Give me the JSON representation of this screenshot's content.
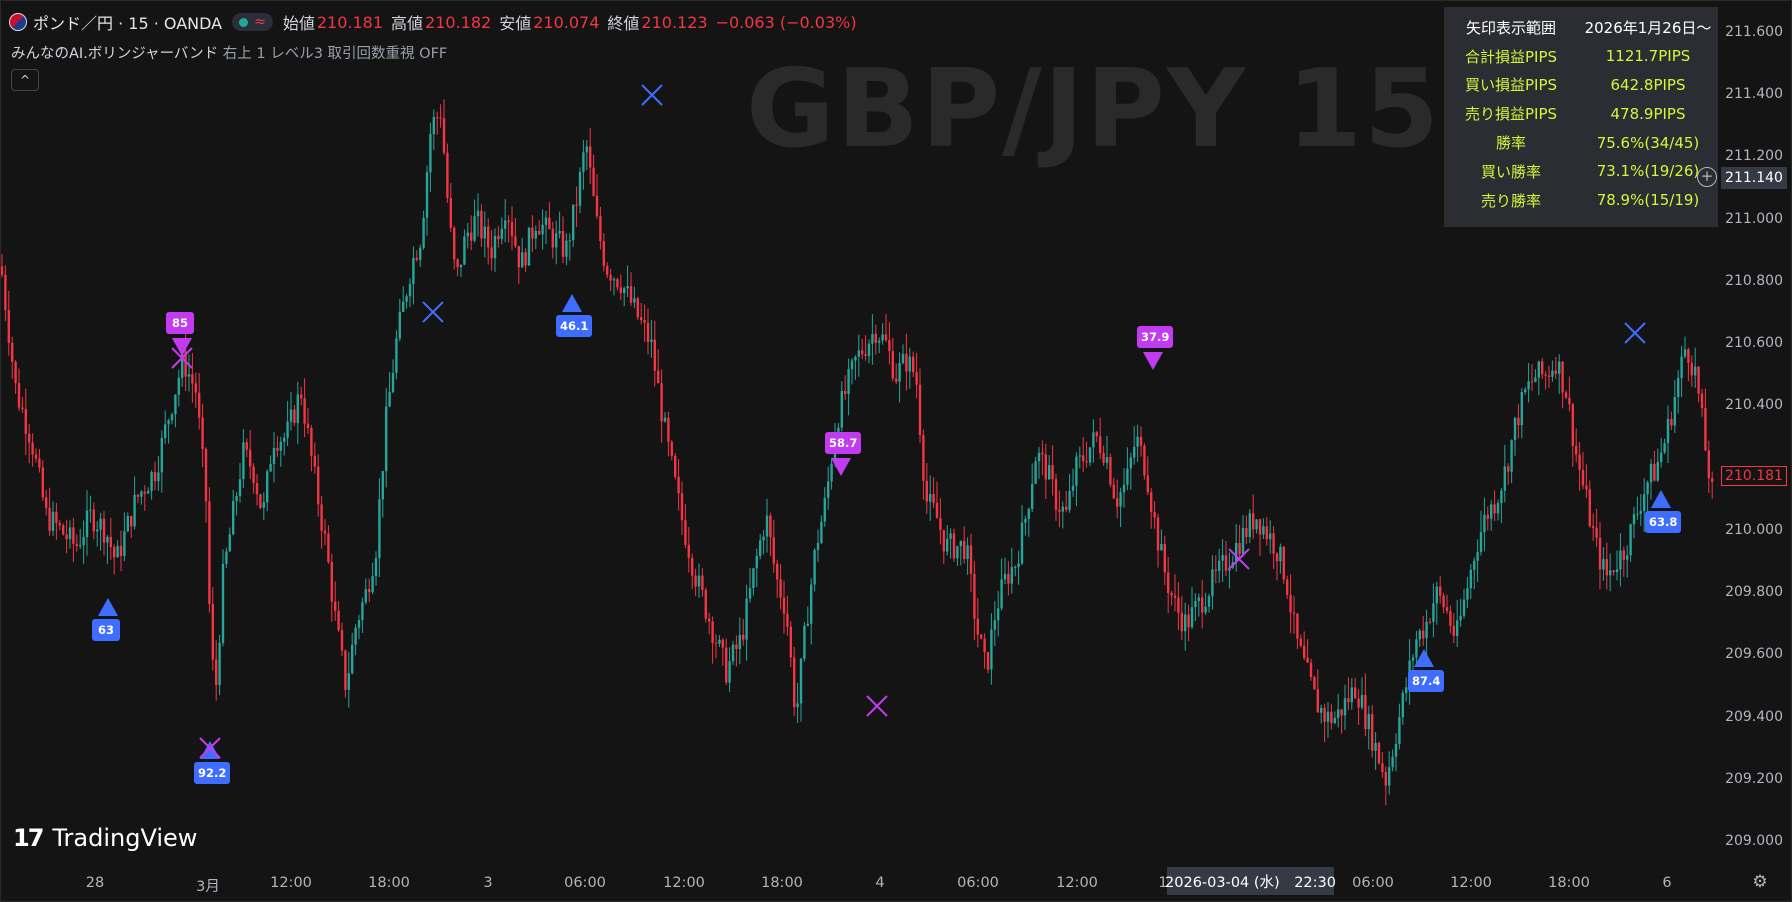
{
  "legend": {
    "symbol": "ポンド／円 · 15 · OANDA",
    "open_label": "始値",
    "open": "210.181",
    "high_label": "高値",
    "high": "210.182",
    "low_label": "安値",
    "low": "210.074",
    "close_label": "終値",
    "close": "210.123",
    "change": "−0.063 (−0.03%)",
    "wave_glyph": "≈"
  },
  "indicator": {
    "name": "みんなのAI.ボリンジャーバンド",
    "params": "右上 1 レベル3 取引回数重視 OFF"
  },
  "collapse_glyph": "^",
  "watermark": "GBP/JPY 15m",
  "stats": {
    "rows": [
      {
        "label": "矢印表示範囲",
        "value": "2026年1月26日〜"
      },
      {
        "label": "合計損益PIPS",
        "value": "1121.7PIPS"
      },
      {
        "label": "買い損益PIPS",
        "value": "642.8PIPS"
      },
      {
        "label": "売り損益PIPS",
        "value": "478.9PIPS"
      },
      {
        "label": "勝率",
        "value": "75.6%(34/45)"
      },
      {
        "label": "買い勝率",
        "value": "73.1%(19/26)"
      },
      {
        "label": "売り勝率",
        "value": "78.9%(15/19)"
      }
    ]
  },
  "y_axis": {
    "ticks": [
      "211.600",
      "211.400",
      "211.200",
      "211.000",
      "210.800",
      "210.600",
      "210.400",
      "210.000",
      "209.800",
      "209.600",
      "209.400",
      "209.200",
      "209.000"
    ],
    "current_price": "210.181",
    "crosshair_price": "211.140"
  },
  "x_axis": {
    "ticks": [
      "28",
      "3月",
      "12:00",
      "18:00",
      "3",
      "06:00",
      "12:00",
      "18:00",
      "4",
      "06:00",
      "12:00",
      "1",
      "06:00",
      "12:00",
      "18:00",
      "6"
    ],
    "crosshair_date": "2026-03-04 (水)　22:30"
  },
  "signals": {
    "buy_labels": [
      "63",
      "92.2",
      "46.1",
      "87.4",
      "63.8"
    ],
    "sell_labels": [
      "85",
      "58.7",
      "37.9"
    ]
  },
  "brand": {
    "logo_text": "TradingView",
    "mark": "17"
  },
  "colors": {
    "up": "#26a69a",
    "down": "#f23645",
    "buy": "#3e6dff",
    "sell": "#c23bf0",
    "stats_text": "#d6f53a"
  },
  "chart_data": {
    "type": "candlestick",
    "y_range": [
      209.0,
      211.6
    ],
    "close_path_points": [
      [
        0,
        210.85
      ],
      [
        15,
        210.45
      ],
      [
        30,
        210.3
      ],
      [
        45,
        210.05
      ],
      [
        60,
        210.0
      ],
      [
        75,
        209.95
      ],
      [
        90,
        210.05
      ],
      [
        105,
        210.0
      ],
      [
        115,
        209.9
      ],
      [
        135,
        210.1
      ],
      [
        155,
        210.2
      ],
      [
        170,
        210.4
      ],
      [
        182,
        210.55
      ],
      [
        195,
        210.45
      ],
      [
        205,
        210.1
      ],
      [
        210,
        209.6
      ],
      [
        215,
        209.5
      ],
      [
        222,
        209.85
      ],
      [
        232,
        210.05
      ],
      [
        242,
        210.25
      ],
      [
        252,
        210.2
      ],
      [
        262,
        210.05
      ],
      [
        272,
        210.3
      ],
      [
        285,
        210.3
      ],
      [
        300,
        210.45
      ],
      [
        312,
        210.2
      ],
      [
        325,
        209.95
      ],
      [
        335,
        209.7
      ],
      [
        345,
        209.5
      ],
      [
        355,
        209.7
      ],
      [
        365,
        209.8
      ],
      [
        375,
        209.95
      ],
      [
        385,
        210.35
      ],
      [
        395,
        210.6
      ],
      [
        410,
        210.85
      ],
      [
        420,
        210.95
      ],
      [
        430,
        211.3
      ],
      [
        440,
        211.35
      ],
      [
        448,
        211.0
      ],
      [
        455,
        210.8
      ],
      [
        465,
        210.95
      ],
      [
        475,
        211.0
      ],
      [
        490,
        210.9
      ],
      [
        505,
        211.05
      ],
      [
        520,
        210.85
      ],
      [
        535,
        211.0
      ],
      [
        550,
        210.95
      ],
      [
        565,
        210.9
      ],
      [
        575,
        211.05
      ],
      [
        585,
        211.25
      ],
      [
        595,
        211.0
      ],
      [
        605,
        210.85
      ],
      [
        620,
        210.8
      ],
      [
        635,
        210.7
      ],
      [
        650,
        210.6
      ],
      [
        665,
        210.3
      ],
      [
        680,
        210.05
      ],
      [
        695,
        209.85
      ],
      [
        710,
        209.7
      ],
      [
        725,
        209.55
      ],
      [
        740,
        209.65
      ],
      [
        755,
        209.9
      ],
      [
        765,
        210.05
      ],
      [
        775,
        209.85
      ],
      [
        785,
        209.75
      ],
      [
        795,
        209.4
      ],
      [
        805,
        209.7
      ],
      [
        815,
        209.95
      ],
      [
        825,
        210.1
      ],
      [
        835,
        210.35
      ],
      [
        845,
        210.45
      ],
      [
        855,
        210.55
      ],
      [
        865,
        210.6
      ],
      [
        875,
        210.65
      ],
      [
        885,
        210.6
      ],
      [
        895,
        210.5
      ],
      [
        905,
        210.55
      ],
      [
        915,
        210.5
      ],
      [
        925,
        210.1
      ],
      [
        935,
        210.05
      ],
      [
        945,
        209.95
      ],
      [
        955,
        209.95
      ],
      [
        965,
        209.95
      ],
      [
        975,
        209.7
      ],
      [
        985,
        209.55
      ],
      [
        995,
        209.75
      ],
      [
        1005,
        209.85
      ],
      [
        1015,
        209.9
      ],
      [
        1025,
        210.05
      ],
      [
        1035,
        210.25
      ],
      [
        1045,
        210.2
      ],
      [
        1055,
        210.1
      ],
      [
        1065,
        210.05
      ],
      [
        1075,
        210.2
      ],
      [
        1085,
        210.25
      ],
      [
        1095,
        210.3
      ],
      [
        1105,
        210.25
      ],
      [
        1115,
        210.1
      ],
      [
        1125,
        210.15
      ],
      [
        1135,
        210.3
      ],
      [
        1145,
        210.2
      ],
      [
        1155,
        210.0
      ],
      [
        1165,
        209.85
      ],
      [
        1175,
        209.75
      ],
      [
        1185,
        209.7
      ],
      [
        1195,
        209.75
      ],
      [
        1205,
        209.8
      ],
      [
        1215,
        209.85
      ],
      [
        1225,
        209.9
      ],
      [
        1235,
        209.95
      ],
      [
        1245,
        210.0
      ],
      [
        1255,
        210.05
      ],
      [
        1265,
        210.0
      ],
      [
        1275,
        209.95
      ],
      [
        1285,
        209.85
      ],
      [
        1295,
        209.65
      ],
      [
        1305,
        209.55
      ],
      [
        1315,
        209.45
      ],
      [
        1325,
        209.4
      ],
      [
        1335,
        209.4
      ],
      [
        1345,
        209.45
      ],
      [
        1355,
        209.5
      ],
      [
        1365,
        209.4
      ],
      [
        1375,
        209.3
      ],
      [
        1385,
        209.2
      ],
      [
        1395,
        209.35
      ],
      [
        1405,
        209.5
      ],
      [
        1415,
        209.65
      ],
      [
        1425,
        209.7
      ],
      [
        1435,
        209.8
      ],
      [
        1445,
        209.75
      ],
      [
        1455,
        209.65
      ],
      [
        1465,
        209.8
      ],
      [
        1475,
        209.95
      ],
      [
        1485,
        210.05
      ],
      [
        1495,
        210.1
      ],
      [
        1505,
        210.2
      ],
      [
        1515,
        210.35
      ],
      [
        1525,
        210.45
      ],
      [
        1535,
        210.5
      ],
      [
        1545,
        210.5
      ],
      [
        1555,
        210.55
      ],
      [
        1565,
        210.45
      ],
      [
        1575,
        210.25
      ],
      [
        1585,
        210.1
      ],
      [
        1595,
        209.95
      ],
      [
        1605,
        209.85
      ],
      [
        1615,
        209.9
      ],
      [
        1625,
        209.95
      ],
      [
        1635,
        210.05
      ],
      [
        1645,
        210.15
      ],
      [
        1655,
        210.2
      ],
      [
        1665,
        210.3
      ],
      [
        1675,
        210.45
      ],
      [
        1685,
        210.6
      ],
      [
        1695,
        210.5
      ],
      [
        1705,
        210.25
      ],
      [
        1712,
        210.1
      ],
      [
        1718,
        210.15
      ]
    ],
    "buy_signals": [
      {
        "x_label": "27 late",
        "price": 209.8,
        "label": "63"
      },
      {
        "x_label": "3月 02:00",
        "price": 209.3,
        "label": "92.2"
      },
      {
        "x_label": "3 06:00",
        "price": 210.8,
        "label": "46.1"
      },
      {
        "x_label": "5 08:00",
        "price": 209.6,
        "label": "87.4"
      },
      {
        "x_label": "6 02:00",
        "price": 210.2,
        "label": "63.8"
      }
    ],
    "sell_signals": [
      {
        "x_label": "3月 01:00",
        "price": 210.55,
        "label": "85"
      },
      {
        "x_label": "3 23:00",
        "price": 210.25,
        "label": "58.7"
      },
      {
        "x_label": "4 22:30",
        "price": 210.5,
        "label": "37.9"
      }
    ],
    "exit_marks": [
      {
        "price": 210.7,
        "color": "buy"
      },
      {
        "price": 211.4,
        "color": "buy"
      },
      {
        "price": 209.3,
        "color": "sell"
      },
      {
        "price": 209.45,
        "color": "sell"
      },
      {
        "price": 209.9,
        "color": "sell"
      },
      {
        "price": 210.65,
        "color": "buy"
      }
    ]
  }
}
